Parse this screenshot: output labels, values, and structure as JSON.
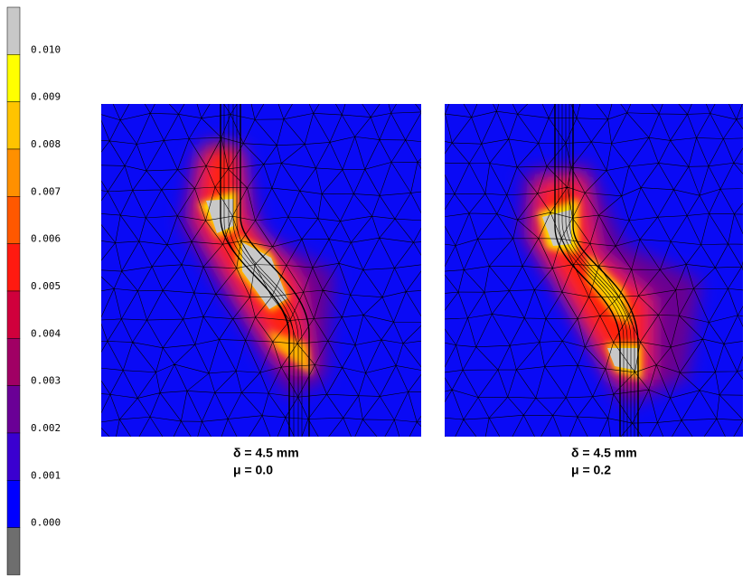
{
  "colorbar": {
    "ticks": [
      "0.010",
      "0.009",
      "0.008",
      "0.007",
      "0.006",
      "0.005",
      "0.004",
      "0.003",
      "0.002",
      "0.001",
      "0.000"
    ]
  },
  "panels": [
    {
      "line1": "δ = 4.5 mm",
      "line2": "μ = 0.0"
    },
    {
      "line1": "δ = 4.5 mm",
      "line2": "μ = 0.2"
    }
  ]
}
